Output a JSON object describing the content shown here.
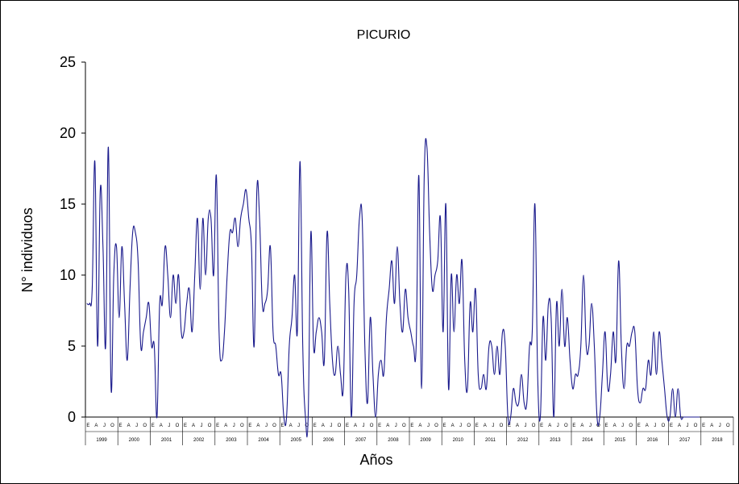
{
  "chart_data": {
    "type": "line",
    "title": "PICURIO",
    "xlabel": "Años",
    "ylabel": "N° individuos",
    "ylim": [
      0,
      25
    ],
    "yticks": [
      0,
      5,
      10,
      15,
      20,
      25
    ],
    "years": [
      "1999",
      "2000",
      "2001",
      "2002",
      "2003",
      "2004",
      "2005",
      "2006",
      "2007",
      "2008",
      "2009",
      "2010",
      "2011",
      "2012",
      "2013",
      "2014",
      "2015",
      "2016",
      "2017",
      "2018"
    ],
    "month_letters": [
      "E",
      "A",
      "J",
      "O"
    ],
    "points_per_year": 12,
    "series": [
      {
        "color": "#1a1a8c",
        "values": [
          8,
          8,
          9,
          18,
          5,
          16,
          12,
          5,
          19,
          2,
          10,
          12,
          7,
          12,
          8,
          4,
          9,
          13,
          13,
          11,
          5,
          6,
          7,
          8,
          5,
          5,
          0,
          8,
          8,
          12,
          10,
          7,
          10,
          8,
          10,
          6,
          6,
          8,
          9,
          6,
          10,
          14,
          9,
          14,
          10,
          14,
          14,
          10,
          17,
          6,
          4,
          6,
          10,
          13,
          13,
          14,
          12,
          14,
          15,
          16,
          14,
          12,
          5,
          16,
          14,
          8,
          8,
          9,
          12,
          6,
          5,
          3,
          3,
          0,
          0,
          5,
          7,
          10,
          6,
          18,
          5,
          0,
          0,
          13,
          5,
          6,
          7,
          6,
          4,
          13,
          8,
          4,
          3,
          5,
          3,
          2,
          10,
          9,
          0,
          8,
          10,
          14,
          14,
          5,
          1,
          7,
          3,
          0,
          3,
          4,
          3,
          7,
          9,
          11,
          8,
          12,
          8,
          6,
          9,
          7,
          6,
          5,
          5,
          17,
          2,
          17,
          19,
          13,
          9,
          10,
          11,
          14,
          6,
          15,
          2,
          10,
          6,
          10,
          8,
          11,
          4,
          2,
          8,
          6,
          9,
          3,
          2,
          3,
          2,
          5,
          5,
          3,
          5,
          3,
          6,
          5,
          0,
          0,
          2,
          1,
          1,
          3,
          1,
          1,
          5,
          6,
          15,
          3,
          0,
          7,
          4,
          8,
          7,
          0,
          8,
          5,
          9,
          5,
          7,
          4,
          2,
          3,
          3,
          5,
          10,
          5,
          5,
          8,
          5,
          0,
          0,
          3,
          6,
          2,
          3,
          6,
          4,
          11,
          5,
          2,
          5,
          5,
          6,
          6,
          2,
          1,
          2,
          2,
          4,
          3,
          6,
          3,
          6,
          4,
          2,
          0,
          0,
          2,
          0,
          2,
          0,
          0,
          0,
          0,
          0,
          0,
          0,
          0
        ]
      }
    ]
  }
}
